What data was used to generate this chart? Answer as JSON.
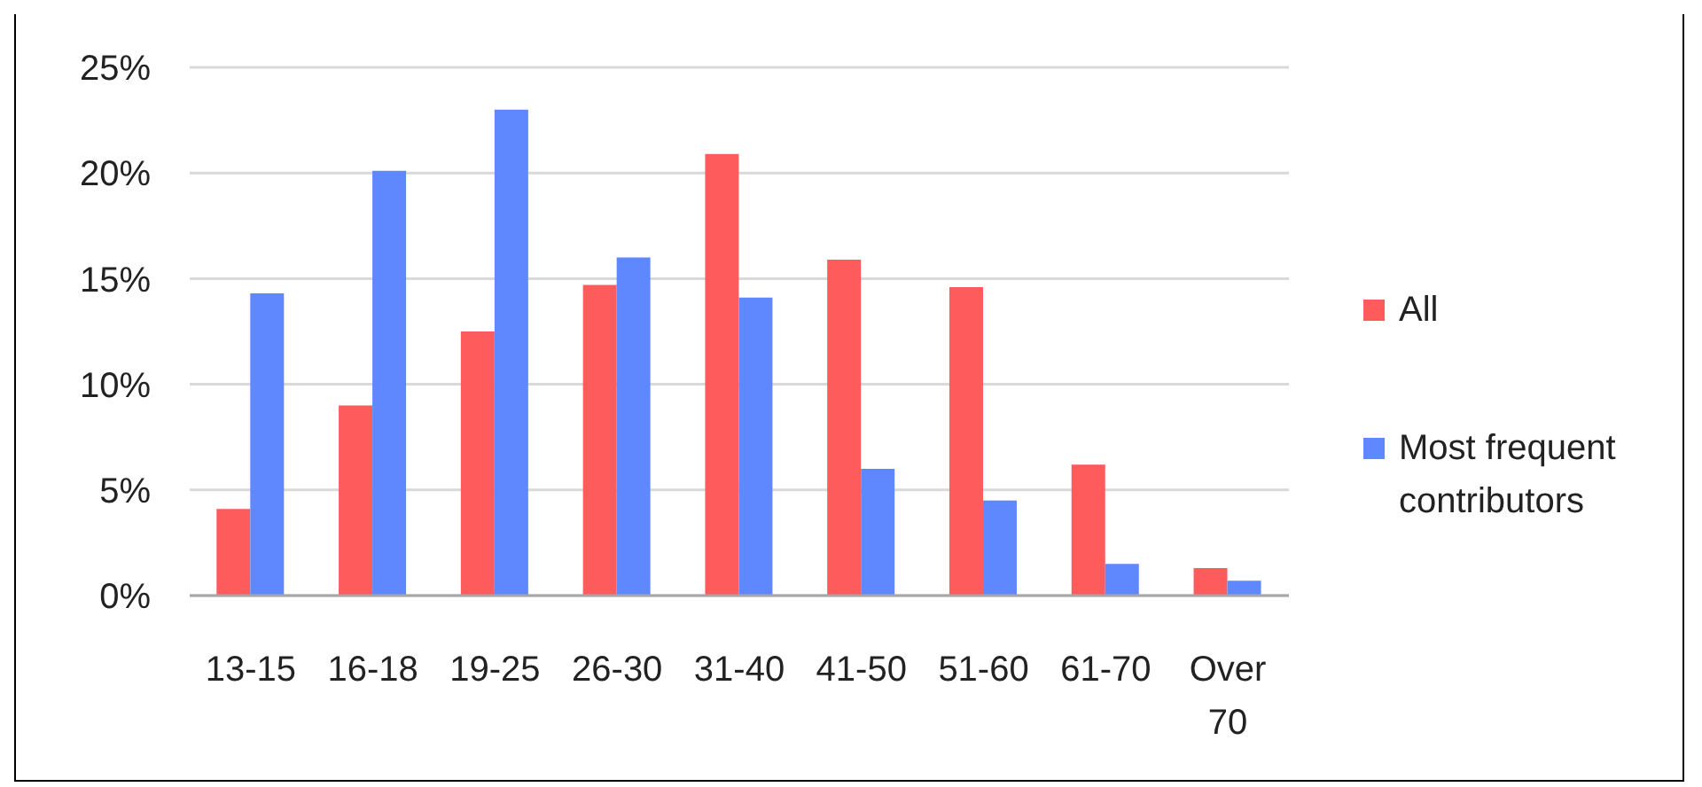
{
  "chart_data": {
    "type": "bar",
    "categories": [
      "13-15",
      "16-18",
      "19-25",
      "26-30",
      "31-40",
      "41-50",
      "51-60",
      "61-70",
      "Over 70"
    ],
    "series": [
      {
        "name": "All",
        "color": "#fd5b5c",
        "values": [
          4.1,
          9.0,
          12.5,
          14.7,
          20.9,
          15.9,
          14.6,
          6.2,
          1.3
        ]
      },
      {
        "name": "Most frequent contributors",
        "color": "#6088fe",
        "values": [
          14.3,
          20.1,
          23.0,
          16.0,
          14.1,
          6.0,
          4.5,
          1.5,
          0.7
        ]
      }
    ],
    "ylim": [
      0,
      25
    ],
    "yticks": [
      {
        "value": 0,
        "label": "0%"
      },
      {
        "value": 5,
        "label": "5%"
      },
      {
        "value": 10,
        "label": "10%"
      },
      {
        "value": 15,
        "label": "15%"
      },
      {
        "value": 20,
        "label": "20%"
      },
      {
        "value": 25,
        "label": "25%"
      }
    ],
    "grid": "y",
    "legend": "right"
  }
}
